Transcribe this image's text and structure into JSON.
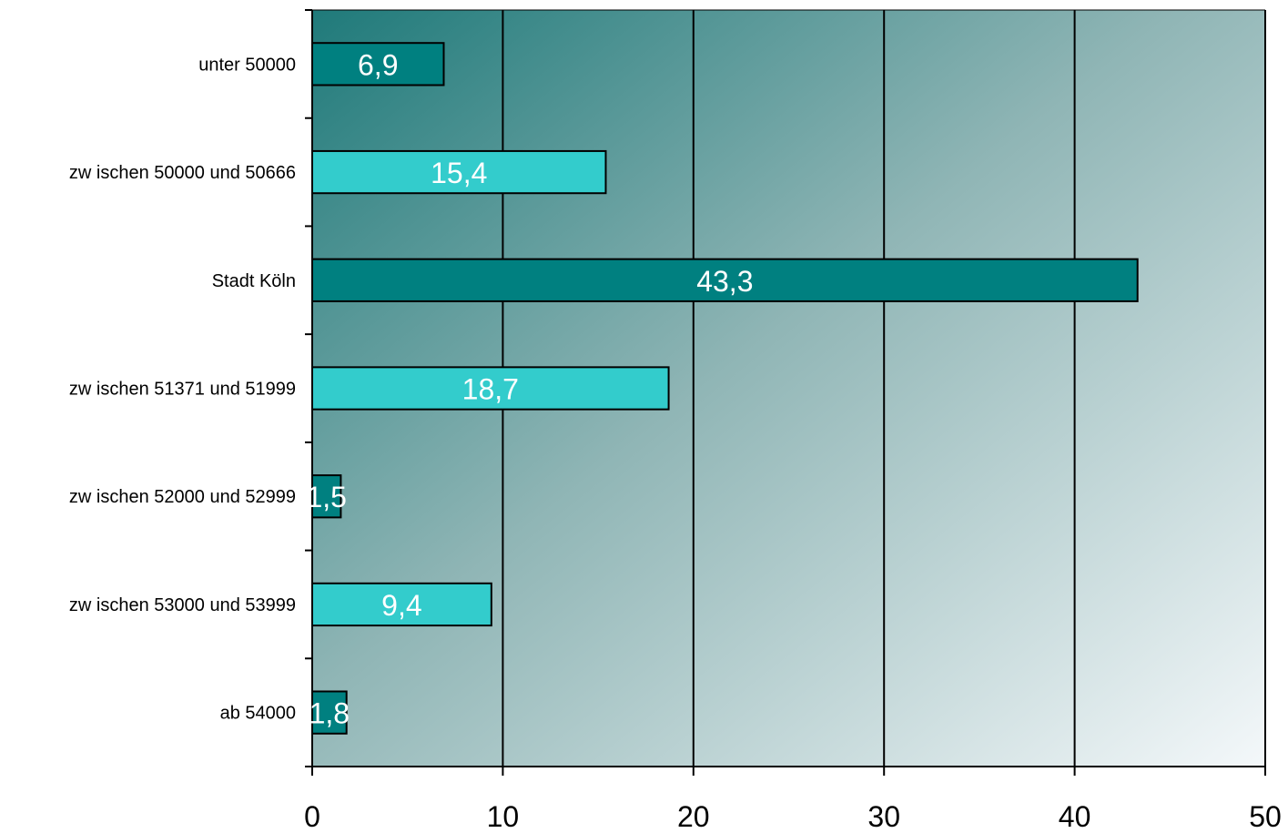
{
  "chart_data": {
    "type": "bar",
    "orientation": "horizontal",
    "categories": [
      "unter 50000",
      "zw ischen 50000 und 50666",
      "Stadt Köln",
      "zw ischen 51371 und 51999",
      "zw ischen 52000 und 52999",
      "zw ischen 53000 und 53999",
      "ab 54000"
    ],
    "values": [
      6.9,
      15.4,
      43.3,
      18.7,
      1.5,
      9.4,
      1.8
    ],
    "value_labels": [
      "6,9",
      "15,4",
      "43,3",
      "18,7",
      "1,5",
      "9,4",
      "1,8"
    ],
    "xlim": [
      0,
      50
    ],
    "xticks": [
      0,
      10,
      20,
      30,
      40,
      50
    ],
    "xtick_labels": [
      "0",
      "10",
      "20",
      "30",
      "40",
      "50"
    ],
    "grid": "vertical",
    "legend": "none",
    "bar_colors": [
      "#008080",
      "#33CCCC",
      "#008080",
      "#33CCCC",
      "#008080",
      "#33CCCC",
      "#008080"
    ],
    "background_gradient": [
      "#1f7a7a",
      "#8fb5b5",
      "#f4f8fa"
    ],
    "title": "",
    "xlabel": "",
    "ylabel": ""
  }
}
